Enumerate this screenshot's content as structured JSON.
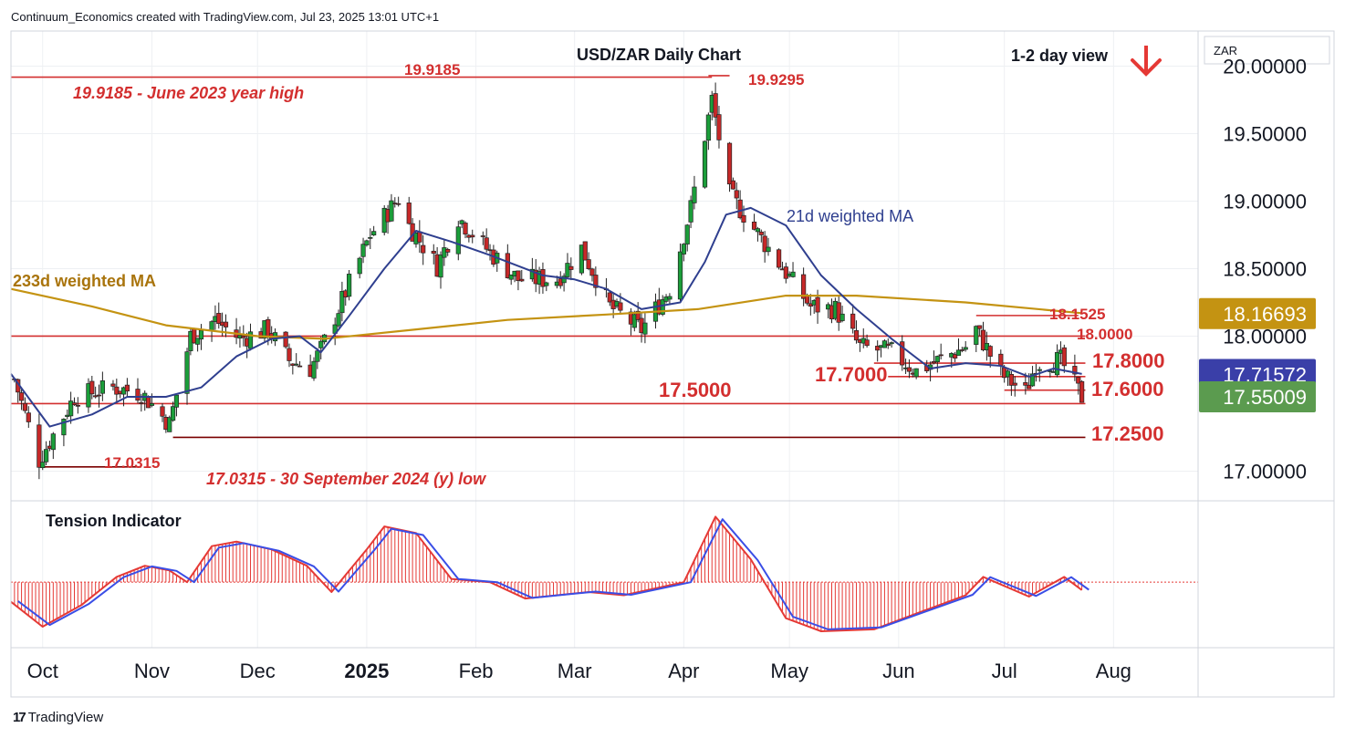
{
  "header": {
    "attribution": "Continuum_Economics created with TradingView.com, Jul 23, 2025 13:01 UTC+1"
  },
  "footer": {
    "brand": "TradingView",
    "logo_glyph": "17"
  },
  "colors": {
    "bull": "#1b5e20",
    "bull_fill": "#1b9e3a",
    "bear": "#c62828",
    "annotation_red": "#d32f2f",
    "ma21": "#2f3f8f",
    "ma233": "#c49312",
    "tension_red": "#e53935",
    "tension_blue": "#3a4ee6",
    "last_price_bg": "#5b9b4f",
    "ma21_bg": "#3a3fa8",
    "ma233_bg": "#c49312"
  },
  "chart_data": {
    "type": "candlestick",
    "title": "USD/ZAR Daily Chart",
    "view_label": "1-2 day view",
    "view_direction_icon": "down-arrow-icon",
    "currency": "ZAR",
    "ylim": [
      16.78,
      20.26
    ],
    "y_ticks": [
      "20.00000",
      "19.50000",
      "19.00000",
      "18.50000",
      "18.00000",
      "17.00000"
    ],
    "y_tick_values": [
      20.0,
      19.5,
      19.0,
      18.5,
      18.0,
      17.0
    ],
    "x_tick_labels": [
      "Oct",
      "Nov",
      "Dec",
      "2025",
      "Feb",
      "Mar",
      "Apr",
      "May",
      "Jun",
      "Jul",
      "Aug"
    ],
    "x_tick_dates": [
      "2024-10-01",
      "2024-11-01",
      "2024-12-01",
      "2025-01-01",
      "2025-02-01",
      "2025-03-01",
      "2025-04-01",
      "2025-05-01",
      "2025-06-01",
      "2025-07-01",
      "2025-08-01"
    ],
    "x_range": [
      "2024-09-22",
      "2025-08-25"
    ],
    "price_labels": [
      {
        "name": "233d weighted MA",
        "value": 18.16693,
        "text": "18.16693",
        "color": "#c49312"
      },
      {
        "name": "21d weighted MA",
        "value": 17.71572,
        "text": "17.71572",
        "color": "#3a3fa8"
      },
      {
        "name": "last price",
        "value": 17.55009,
        "text": "17.55009",
        "color": "#5b9b4f"
      }
    ],
    "levels": [
      {
        "text": "19.9185",
        "value": 19.9185,
        "from": "2024-09-22",
        "to": "2025-04-09"
      },
      {
        "text": "19.9295",
        "value": 19.9295,
        "from": "2025-04-08",
        "to": "2025-04-14"
      },
      {
        "text": "18.1525",
        "value": 18.1525,
        "from": "2025-06-23",
        "to": "2025-07-22"
      },
      {
        "text": "18.0000",
        "value": 18.0,
        "from": "2024-09-22",
        "to": "2025-07-24"
      },
      {
        "text": "17.8000",
        "value": 17.8,
        "from": "2025-05-25",
        "to": "2025-07-24"
      },
      {
        "text": "17.7000",
        "value": 17.7,
        "from": "2025-05-29",
        "to": "2025-07-24"
      },
      {
        "text": "17.6000",
        "value": 17.6,
        "from": "2025-07-01",
        "to": "2025-07-24"
      },
      {
        "text": "17.5000",
        "value": 17.5,
        "from": "2024-09-22",
        "to": "2025-07-24"
      },
      {
        "text": "17.2500",
        "value": 17.25,
        "from": "2024-11-07",
        "to": "2025-07-24"
      },
      {
        "text": "17.0315",
        "value": 17.0315,
        "from": "2024-09-30",
        "to": "2024-10-29"
      }
    ],
    "annotations": [
      {
        "text": "19.9185 - June 2023 year high"
      },
      {
        "text": "17.0315 - 30 September 2024 (y) low"
      },
      {
        "text": "21d weighted MA"
      },
      {
        "text": "233d weighted MA"
      }
    ],
    "anchors": [
      [
        "2024-09-23",
        17.68
      ],
      [
        "2024-09-30",
        17.08
      ],
      [
        "2024-10-10",
        17.55
      ],
      [
        "2024-10-21",
        17.62
      ],
      [
        "2024-10-29",
        17.58
      ],
      [
        "2024-11-06",
        17.35
      ],
      [
        "2024-11-12",
        18.0
      ],
      [
        "2024-11-19",
        18.12
      ],
      [
        "2024-11-26",
        17.98
      ],
      [
        "2024-12-04",
        18.05
      ],
      [
        "2024-12-10",
        17.82
      ],
      [
        "2024-12-16",
        17.76
      ],
      [
        "2024-12-19",
        17.9
      ],
      [
        "2025-01-02",
        18.75
      ],
      [
        "2025-01-10",
        19.02
      ],
      [
        "2025-01-13",
        18.82
      ],
      [
        "2025-01-21",
        18.52
      ],
      [
        "2025-01-27",
        18.88
      ],
      [
        "2025-02-05",
        18.62
      ],
      [
        "2025-02-13",
        18.42
      ],
      [
        "2025-02-24",
        18.42
      ],
      [
        "2025-03-03",
        18.65
      ],
      [
        "2025-03-11",
        18.22
      ],
      [
        "2025-03-20",
        18.05
      ],
      [
        "2025-03-28",
        18.35
      ],
      [
        "2025-04-03",
        18.95
      ],
      [
        "2025-04-09",
        19.75
      ],
      [
        "2025-04-14",
        19.05
      ],
      [
        "2025-04-25",
        18.65
      ],
      [
        "2025-05-07",
        18.22
      ],
      [
        "2025-05-14",
        18.2
      ],
      [
        "2025-05-21",
        17.92
      ],
      [
        "2025-05-30",
        17.88
      ],
      [
        "2025-06-06",
        17.74
      ],
      [
        "2025-06-20",
        17.92
      ],
      [
        "2025-06-23",
        18.05
      ],
      [
        "2025-06-30",
        17.72
      ],
      [
        "2025-07-07",
        17.58
      ],
      [
        "2025-07-10",
        17.8
      ],
      [
        "2025-07-17",
        17.82
      ],
      [
        "2025-07-23",
        17.55
      ]
    ],
    "ma21": [
      [
        "2024-09-22",
        17.72
      ],
      [
        "2024-10-03",
        17.33
      ],
      [
        "2024-10-15",
        17.42
      ],
      [
        "2024-10-25",
        17.55
      ],
      [
        "2024-11-05",
        17.55
      ],
      [
        "2024-11-15",
        17.62
      ],
      [
        "2024-11-25",
        17.85
      ],
      [
        "2024-12-05",
        17.98
      ],
      [
        "2024-12-13",
        18.0
      ],
      [
        "2024-12-19",
        17.88
      ],
      [
        "2024-12-27",
        18.15
      ],
      [
        "2025-01-06",
        18.5
      ],
      [
        "2025-01-15",
        18.78
      ],
      [
        "2025-01-25",
        18.7
      ],
      [
        "2025-02-05",
        18.6
      ],
      [
        "2025-02-20",
        18.45
      ],
      [
        "2025-03-01",
        18.42
      ],
      [
        "2025-03-10",
        18.35
      ],
      [
        "2025-03-20",
        18.2
      ],
      [
        "2025-03-31",
        18.25
      ],
      [
        "2025-04-07",
        18.55
      ],
      [
        "2025-04-13",
        18.9
      ],
      [
        "2025-04-20",
        18.95
      ],
      [
        "2025-04-30",
        18.82
      ],
      [
        "2025-05-10",
        18.45
      ],
      [
        "2025-05-20",
        18.2
      ],
      [
        "2025-05-30",
        17.98
      ],
      [
        "2025-06-10",
        17.76
      ],
      [
        "2025-06-20",
        17.8
      ],
      [
        "2025-06-30",
        17.78
      ],
      [
        "2025-07-08",
        17.7
      ],
      [
        "2025-07-15",
        17.76
      ],
      [
        "2025-07-23",
        17.72
      ]
    ],
    "ma233": [
      [
        "2024-09-22",
        18.35
      ],
      [
        "2024-10-15",
        18.22
      ],
      [
        "2024-11-05",
        18.08
      ],
      [
        "2024-12-01",
        18.0
      ],
      [
        "2024-12-20",
        17.98
      ],
      [
        "2025-01-15",
        18.05
      ],
      [
        "2025-02-10",
        18.12
      ],
      [
        "2025-03-10",
        18.16
      ],
      [
        "2025-04-05",
        18.2
      ],
      [
        "2025-04-30",
        18.3
      ],
      [
        "2025-05-20",
        18.3
      ],
      [
        "2025-06-20",
        18.25
      ],
      [
        "2025-07-23",
        18.17
      ]
    ],
    "tension_indicator": {
      "title": "Tension Indicator",
      "ylim": [
        -1.0,
        1.2
      ],
      "anchors": [
        [
          "2024-09-22",
          -0.3
        ],
        [
          "2024-10-01",
          -0.68
        ],
        [
          "2024-10-12",
          -0.35
        ],
        [
          "2024-10-22",
          0.08
        ],
        [
          "2024-10-30",
          0.25
        ],
        [
          "2024-11-06",
          0.18
        ],
        [
          "2024-11-11",
          0.0
        ],
        [
          "2024-11-18",
          0.55
        ],
        [
          "2024-11-25",
          0.62
        ],
        [
          "2024-12-05",
          0.5
        ],
        [
          "2024-12-15",
          0.25
        ],
        [
          "2024-12-22",
          -0.15
        ],
        [
          "2025-01-01",
          0.5
        ],
        [
          "2025-01-06",
          0.85
        ],
        [
          "2025-01-15",
          0.75
        ],
        [
          "2025-01-25",
          0.05
        ],
        [
          "2025-02-05",
          0.0
        ],
        [
          "2025-02-15",
          -0.25
        ],
        [
          "2025-03-05",
          -0.15
        ],
        [
          "2025-03-15",
          -0.2
        ],
        [
          "2025-04-01",
          0.0
        ],
        [
          "2025-04-10",
          1.0
        ],
        [
          "2025-04-20",
          0.35
        ],
        [
          "2025-04-30",
          -0.55
        ],
        [
          "2025-05-10",
          -0.75
        ],
        [
          "2025-05-25",
          -0.72
        ],
        [
          "2025-06-10",
          -0.4
        ],
        [
          "2025-06-20",
          -0.2
        ],
        [
          "2025-06-25",
          0.08
        ],
        [
          "2025-07-08",
          -0.22
        ],
        [
          "2025-07-18",
          0.08
        ],
        [
          "2025-07-23",
          -0.12
        ]
      ]
    }
  }
}
